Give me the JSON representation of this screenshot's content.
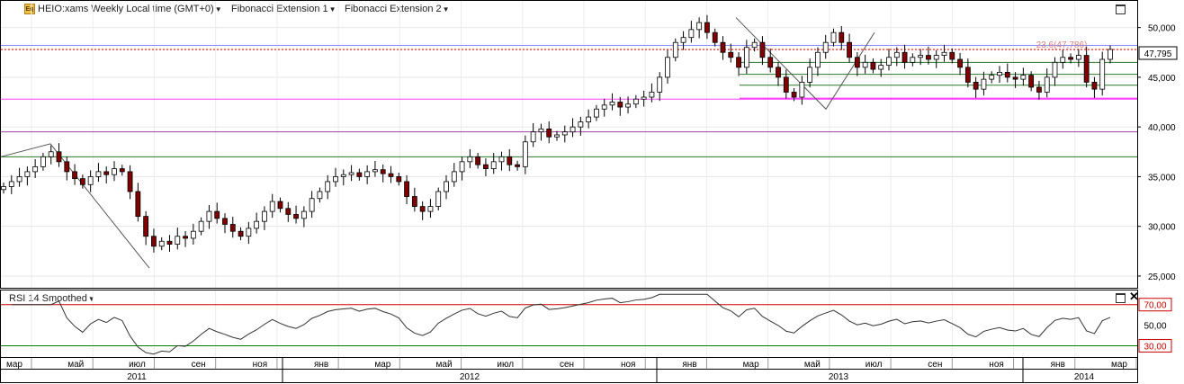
{
  "header": {
    "instrument": "HEIO:xams Weekly Local time (GMT+0)",
    "indicator1": "Fibonacci Extension 1",
    "indicator2": "Fibonacci Extension 2",
    "icon": "eq-icon"
  },
  "rsi_header": {
    "label": "RSI 14 Smoothed"
  },
  "fib_label": "23.6(47,786)",
  "price_label": "47,795",
  "colors": {
    "up_candle": "#ffffff",
    "down_candle": "#800000",
    "fib_magenta": "#ff40ff",
    "fib_green": "#2a7a2a",
    "rsi_line": "#333333",
    "rsi_70": "#cc0000",
    "rsi_30": "#008000"
  },
  "chart_data": [
    {
      "type": "candlestick",
      "title": "HEIO:xams Weekly",
      "y_axis": {
        "min": 24000,
        "max": 52500,
        "ticks": [
          "50,000",
          "45,000",
          "40,000",
          "35,000",
          "30,000",
          "25,000"
        ],
        "tick_values": [
          50000,
          45000,
          40000,
          35000,
          30000,
          25000
        ]
      },
      "x_axis": {
        "month_labels": [
          "мар",
          "май",
          "июл",
          "сен",
          "ноя",
          "янв",
          "мар",
          "май",
          "июл",
          "сен",
          "ноя",
          "янв",
          "мар",
          "май",
          "июл",
          "сен",
          "ноя",
          "янв",
          "мар"
        ],
        "year_labels": [
          "2011",
          "2012",
          "2013",
          "2014"
        ]
      },
      "last_price": 47795,
      "horizontal_levels": [
        {
          "value": 47786,
          "label": "23.6(47,786)",
          "color": "#ff4040"
        },
        {
          "value": 42800,
          "color": "#ff40ff"
        },
        {
          "value": 39500,
          "color": "#a040a0"
        },
        {
          "value": 37000,
          "color": "#2a7a2a"
        }
      ],
      "closes": [
        34000,
        34500,
        35000,
        35500,
        36000,
        37000,
        37500,
        36500,
        35500,
        34800,
        34200,
        35000,
        35500,
        35200,
        35800,
        35500,
        33500,
        31000,
        29000,
        28000,
        28500,
        28200,
        29000,
        28800,
        29500,
        30500,
        31500,
        30800,
        30200,
        29500,
        29000,
        29800,
        30500,
        31500,
        32500,
        31800,
        31200,
        30800,
        31500,
        32800,
        33500,
        34500,
        35000,
        35200,
        35400,
        35000,
        35500,
        35700,
        35300,
        35000,
        34500,
        33000,
        32000,
        31500,
        32000,
        33500,
        34500,
        35500,
        36500,
        37000,
        36200,
        35800,
        36500,
        37000,
        36200,
        36000,
        38500,
        39500,
        39800,
        39000,
        39200,
        39500,
        40000,
        40500,
        41000,
        41800,
        42200,
        42500,
        42000,
        42300,
        42800,
        43000,
        43500,
        45000,
        47000,
        48500,
        49000,
        49800,
        50500,
        49500,
        48500,
        47500,
        47000,
        46000,
        48000,
        48500,
        47000,
        46000,
        45000,
        43500,
        43000,
        44500,
        46000,
        47500,
        48500,
        49500,
        48500,
        47000,
        46000,
        46500,
        45800,
        46200,
        47000,
        47500,
        46500,
        47000,
        47200,
        46800,
        47200,
        47500,
        46800,
        46000,
        44500,
        43800,
        44800,
        45200,
        45500,
        45000,
        44800,
        45200,
        44000,
        43500,
        45000,
        46500,
        47000,
        46800,
        47200,
        44500,
        43800,
        46800,
        47795
      ],
      "rsi": {
        "label": "RSI 14 Smoothed",
        "levels": [
          "70,00",
          "50,00",
          "30,00"
        ],
        "level_values": [
          70,
          50,
          30
        ],
        "min": 20,
        "max": 82
      }
    }
  ]
}
